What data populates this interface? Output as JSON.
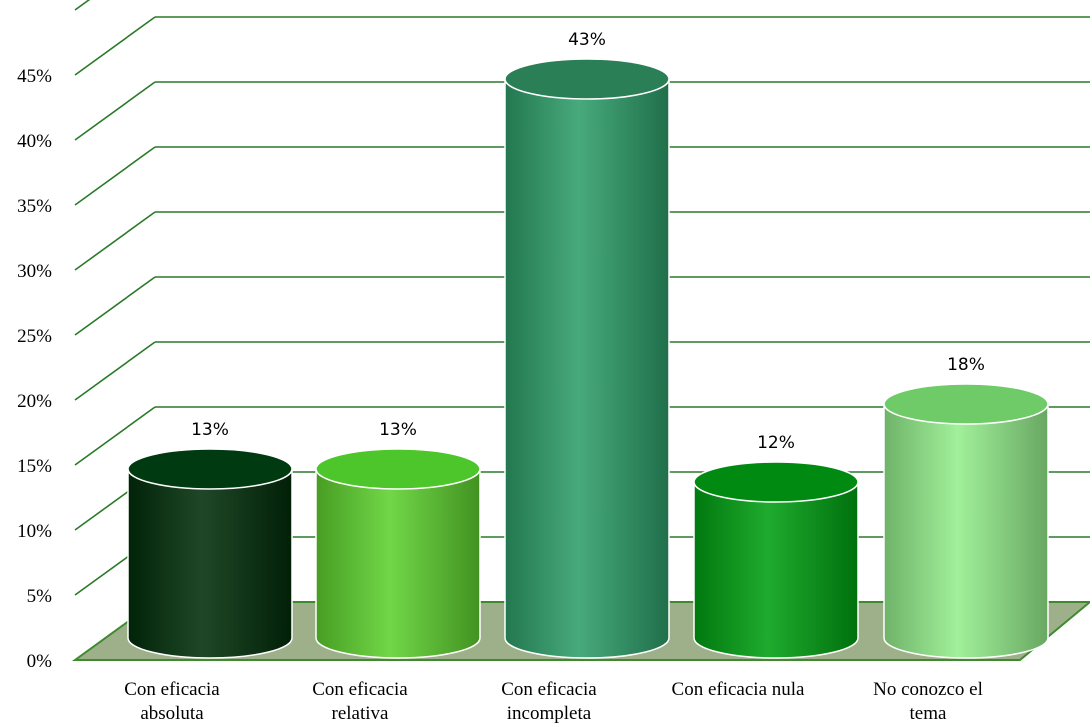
{
  "chart_data": {
    "type": "bar",
    "style": "3d-cylinder",
    "categories": [
      [
        "Con eficacia",
        "absoluta"
      ],
      [
        "Con eficacia",
        "relativa"
      ],
      [
        "Con eficacia",
        "incompleta"
      ],
      [
        "Con eficacia nula"
      ],
      [
        "No conozco el",
        "tema"
      ]
    ],
    "values": [
      13,
      13,
      43,
      12,
      18
    ],
    "data_labels": [
      "13%",
      "13%",
      "43%",
      "12%",
      "18%"
    ],
    "y_ticks": [
      "0%",
      "5%",
      "10%",
      "15%",
      "20%",
      "25%",
      "30%",
      "35%",
      "40%",
      "45%"
    ],
    "ylim": [
      0,
      45
    ],
    "grid": true,
    "legend": "none",
    "colors": {
      "bars": [
        "#012e0a",
        "#5ed12f",
        "#2e9e6a",
        "#00a012",
        "#94ee8c"
      ],
      "bar_tops": [
        "#003a10",
        "#4cc62a",
        "#2b7f57",
        "#008a12",
        "#6fcb67"
      ],
      "gridlines": "#2a7a2a",
      "floor": "#9db08a",
      "floor_edge": "#3f8a2f"
    }
  }
}
